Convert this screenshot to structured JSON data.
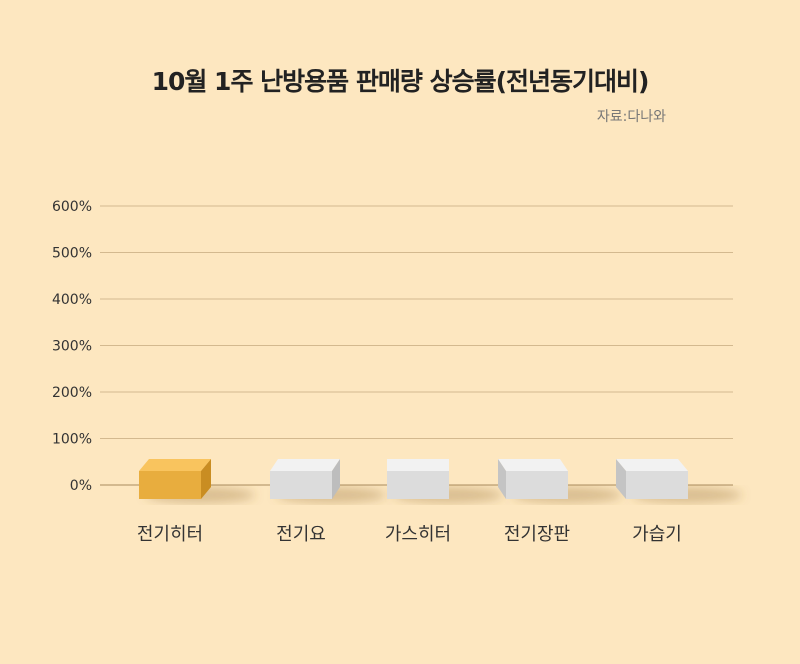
{
  "chart_data": {
    "type": "bar",
    "title": "10월 1주 난방용품 판매량 상승률(전년동기대비)",
    "source": "자료:다나와",
    "categories": [
      "전기히터",
      "전기요",
      "가스히터",
      "전기장판",
      "가습기"
    ],
    "values": [
      0,
      0,
      0,
      0,
      0
    ],
    "unit": "%",
    "ylim": [
      0,
      600
    ],
    "yticks": [
      "0%",
      "100%",
      "200%",
      "300%",
      "400%",
      "500%",
      "600%"
    ],
    "grid": true,
    "colors": {
      "highlight": "#e8ad3e",
      "bar": "#dcdcdc",
      "background": "#fde7c0",
      "grid": "#d3b98f"
    }
  }
}
